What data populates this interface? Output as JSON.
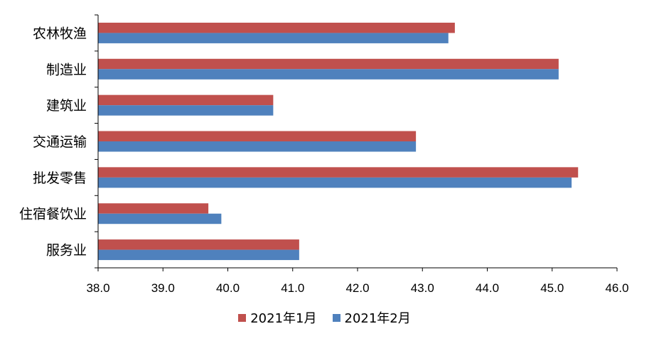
{
  "chart_data": {
    "type": "bar",
    "orientation": "horizontal",
    "categories": [
      "农林牧渔",
      "制造业",
      "建筑业",
      "交通运输",
      "批发零售",
      "住宿餐饮业",
      "服务业"
    ],
    "series": [
      {
        "name": "2021年1月",
        "color": "#c0504d",
        "values": [
          43.5,
          45.1,
          40.7,
          42.9,
          45.4,
          39.7,
          41.1
        ]
      },
      {
        "name": "2021年2月",
        "color": "#4f81bd",
        "values": [
          43.4,
          45.1,
          40.7,
          42.9,
          45.3,
          39.9,
          41.1
        ]
      }
    ],
    "xlim": [
      38.0,
      46.0
    ],
    "xticks": [
      "38.0",
      "39.0",
      "40.0",
      "41.0",
      "42.0",
      "43.0",
      "44.0",
      "45.0",
      "46.0"
    ],
    "title": "",
    "xlabel": "",
    "ylabel": "",
    "grid": false,
    "legend_position": "bottom"
  }
}
